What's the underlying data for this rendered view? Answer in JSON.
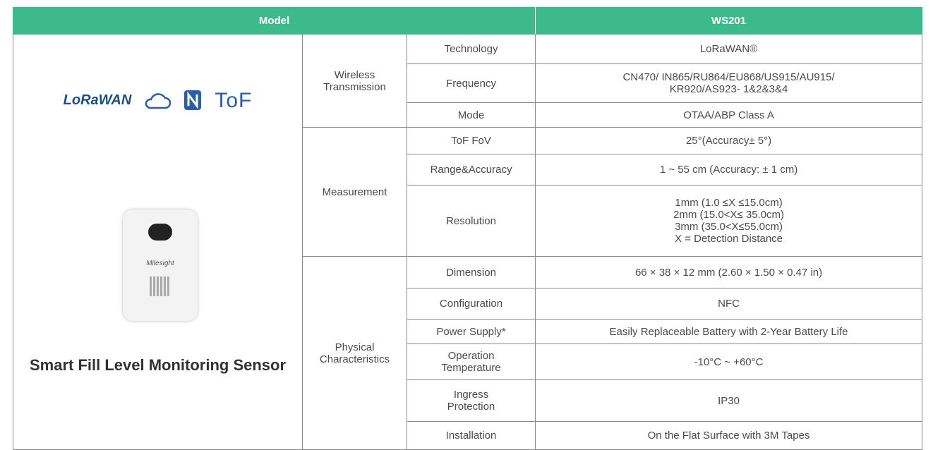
{
  "header": {
    "model_label": "Model",
    "model": "WS201"
  },
  "product": {
    "logos": [
      "LoRaWAN",
      "ToF"
    ],
    "device_brand": "Milesight",
    "title": "Smart Fill Level Monitoring Sensor"
  },
  "groups": [
    {
      "label": "Wireless\nTransmission",
      "rows": [
        [
          "Technology",
          "LoRaWAN®"
        ],
        [
          "Frequency",
          "CN470/ IN865/RU864/EU868/US915/AU915/\nKR920/AS923- 1&2&3&4"
        ],
        [
          "Mode",
          "OTAA/ABP Class A"
        ]
      ]
    },
    {
      "label": "Measurement",
      "rows": [
        [
          "ToF FoV",
          "25°(Accuracy± 5°)"
        ],
        [
          "Range&Accuracy",
          "1 ~ 55 cm (Accuracy: ± 1 cm)"
        ],
        [
          "Resolution",
          "1mm (1.0 ≤X ≤15.0cm)\n2mm (15.0<X≤ 35.0cm)\n3mm (35.0<X≤55.0cm)\nX = Detection Distance"
        ]
      ]
    },
    {
      "label": "Physical\nCharacteristics",
      "rows": [
        [
          "Dimension",
          "66 × 38 × 12 mm (2.60 × 1.50 × 0.47 in)"
        ],
        [
          "Configuration",
          "NFC"
        ],
        [
          "Power Supply*",
          "Easily Replaceable Battery with 2-Year Battery Life"
        ],
        [
          "Operation\nTemperature",
          "-10°C ~ +60°C"
        ],
        [
          "Ingress\nProtection",
          "IP30"
        ],
        [
          "Installation",
          "On the Flat Surface with 3M Tapes"
        ]
      ]
    }
  ]
}
